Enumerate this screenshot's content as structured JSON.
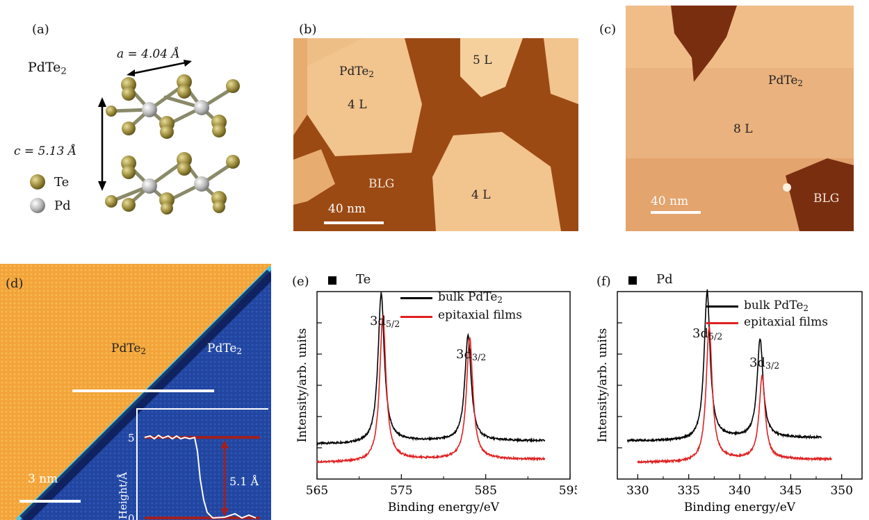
{
  "panels": {
    "a": {
      "label": "(a)",
      "compound": "PdTe",
      "compound_sub": "2",
      "lattice_a": "a = 4.04 Å",
      "lattice_c": "c = 5.13 Å",
      "legend": [
        {
          "name": "Te",
          "color": "#9a8a3a"
        },
        {
          "name": "Pd",
          "color": "#b8b8b8"
        }
      ]
    },
    "b": {
      "label": "(b)",
      "texts": {
        "pdte2": "PdTe",
        "pdte2_sub": "2",
        "l5": "5 L",
        "l4a": "4 L",
        "l4b": "4 L",
        "blg": "BLG",
        "scale": "40 nm"
      }
    },
    "c": {
      "label": "(c)",
      "texts": {
        "pdte2": "PdTe",
        "pdte2_sub": "2",
        "l8": "8 L",
        "blg": "BLG",
        "scale": "40 nm"
      }
    },
    "d": {
      "label": "(d)",
      "texts": {
        "left": "PdTe",
        "left_sub": "2",
        "right": "PdTe",
        "right_sub": "2",
        "scale": "3 nm"
      },
      "inset": {
        "ylabel": "Height/Å",
        "tick5": "5",
        "tick0": "0",
        "step": "5.1 Å"
      }
    },
    "e": {
      "label": "(e)",
      "element": "Te",
      "legend": [
        "bulk PdTe",
        "epitaxial films"
      ],
      "legend_sub": "2",
      "peaks": [
        {
          "main": "3d",
          "sub": "5/2"
        },
        {
          "main": "3d",
          "sub": "3/2"
        }
      ]
    },
    "f": {
      "label": "(f)",
      "element": "Pd",
      "legend": [
        "bulk PdTe",
        "epitaxial films"
      ],
      "legend_sub": "2",
      "peaks": [
        {
          "main": "3d",
          "sub": "5/2"
        },
        {
          "main": "3d",
          "sub": "3/2"
        }
      ]
    }
  },
  "chart_data": [
    {
      "type": "line",
      "title": "Te",
      "xlabel": "Binding energy/eV",
      "ylabel": "Intensity/arb. units",
      "xlim": [
        565,
        595
      ],
      "xticks": [
        565,
        575,
        585,
        595
      ],
      "series": [
        {
          "name": "bulk PdTe2",
          "color": "#000000",
          "peaks": [
            {
              "center": 572.6,
              "height": 1.0,
              "width": 0.45
            },
            {
              "center": 582.9,
              "height": 0.72,
              "width": 0.45
            }
          ],
          "x_range": [
            565,
            592
          ],
          "baseline": 0.18
        },
        {
          "name": "epitaxial films",
          "color": "#e02020",
          "peaks": [
            {
              "center": 572.8,
              "height": 0.95,
              "width": 0.45
            },
            {
              "center": 583.1,
              "height": 0.8,
              "width": 0.45
            }
          ],
          "x_range": [
            565,
            592
          ],
          "baseline": 0.06
        }
      ]
    },
    {
      "type": "line",
      "title": "Pd",
      "xlabel": "Binding energy/eV",
      "ylabel": "Intensity/arb. units",
      "xlim": [
        328,
        352
      ],
      "xticks": [
        330,
        335,
        340,
        345,
        350
      ],
      "series": [
        {
          "name": "bulk PdTe2",
          "color": "#000000",
          "peaks": [
            {
              "center": 336.8,
              "height": 1.0,
              "width": 0.35
            },
            {
              "center": 342.0,
              "height": 0.68,
              "width": 0.35
            }
          ],
          "x_range": [
            329,
            348
          ],
          "baseline": 0.2
        },
        {
          "name": "epitaxial films",
          "color": "#e02020",
          "peaks": [
            {
              "center": 337.0,
              "height": 0.88,
              "width": 0.35
            },
            {
              "center": 342.2,
              "height": 0.55,
              "width": 0.35
            }
          ],
          "x_range": [
            330,
            349
          ],
          "baseline": 0.06
        }
      ]
    }
  ]
}
